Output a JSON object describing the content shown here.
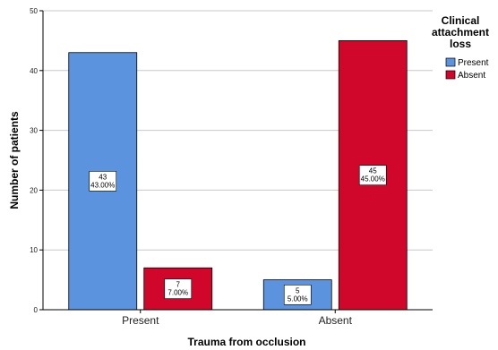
{
  "chart_data": {
    "type": "bar",
    "categories": [
      "Present",
      "Absent"
    ],
    "series": [
      {
        "name": "Present",
        "values": [
          43,
          5
        ],
        "percent_labels": [
          "43.00%",
          "5.00%"
        ],
        "color": "#5b93df"
      },
      {
        "name": "Absent",
        "values": [
          7,
          45
        ],
        "percent_labels": [
          "7.00%",
          "45.00%"
        ],
        "color": "#d1062b"
      }
    ],
    "xlabel": "Trauma from occlusion",
    "ylabel": "Number of patients",
    "ylim": [
      0,
      50
    ],
    "yticks": [
      0,
      10,
      20,
      30,
      40,
      50
    ],
    "grid": true,
    "legend": {
      "title_lines": [
        "Clinical",
        "attachment",
        "loss"
      ],
      "placement": "right"
    }
  }
}
